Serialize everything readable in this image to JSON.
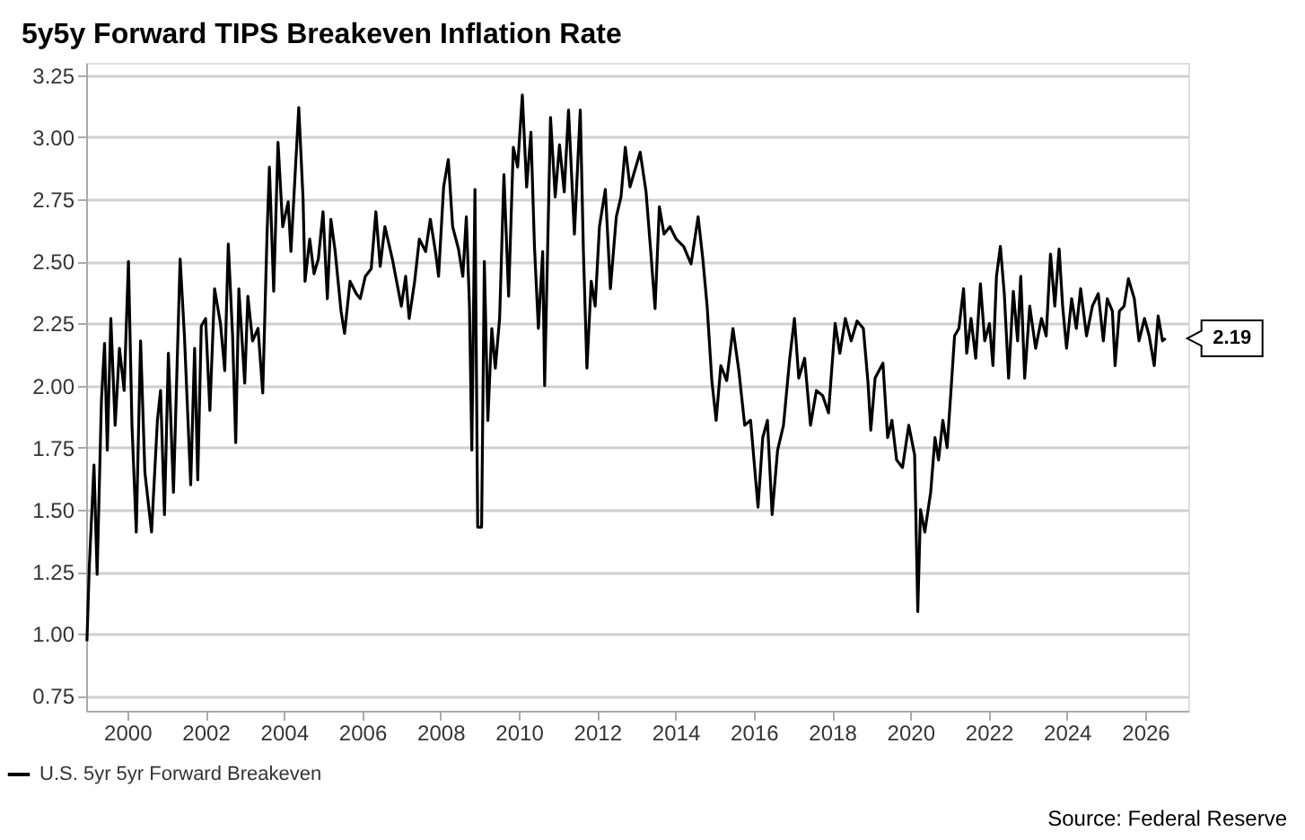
{
  "chart_data": {
    "type": "line",
    "title": "5y5y Forward TIPS Breakeven Inflation Rate",
    "x": [
      1998.97,
      1999.03,
      1999.15,
      1999.23,
      1999.34,
      1999.42,
      1999.49,
      1999.58,
      1999.69,
      1999.8,
      1999.92,
      2000.03,
      2000.12,
      2000.23,
      2000.34,
      2000.45,
      2000.62,
      2000.77,
      2000.85,
      2000.95,
      2001.05,
      2001.18,
      2001.35,
      2001.46,
      2001.62,
      2001.72,
      2001.8,
      2001.89,
      2002.0,
      2002.11,
      2002.23,
      2002.38,
      2002.49,
      2002.58,
      2002.69,
      2002.77,
      2002.85,
      2003.0,
      2003.08,
      2003.2,
      2003.34,
      2003.46,
      2003.57,
      2003.63,
      2003.74,
      2003.85,
      2003.97,
      2004.11,
      2004.18,
      2004.28,
      2004.38,
      2004.49,
      2004.54,
      2004.66,
      2004.77,
      2004.88,
      2005.0,
      2005.11,
      2005.2,
      2005.31,
      2005.46,
      2005.55,
      2005.69,
      2005.85,
      2005.95,
      2006.08,
      2006.23,
      2006.35,
      2006.46,
      2006.58,
      2006.77,
      2007.0,
      2007.11,
      2007.2,
      2007.34,
      2007.46,
      2007.62,
      2007.74,
      2007.88,
      2007.95,
      2008.08,
      2008.2,
      2008.31,
      2008.46,
      2008.57,
      2008.66,
      2008.74,
      2008.8,
      2008.88,
      2008.95,
      2009.05,
      2009.12,
      2009.21,
      2009.31,
      2009.4,
      2009.51,
      2009.62,
      2009.74,
      2009.86,
      2009.97,
      2010.09,
      2010.2,
      2010.31,
      2010.4,
      2010.5,
      2010.61,
      2010.66,
      2010.81,
      2010.93,
      2011.04,
      2011.16,
      2011.27,
      2011.42,
      2011.57,
      2011.65,
      2011.74,
      2011.85,
      2011.95,
      2012.06,
      2012.21,
      2012.34,
      2012.49,
      2012.61,
      2012.72,
      2012.84,
      2012.95,
      2013.1,
      2013.25,
      2013.37,
      2013.48,
      2013.59,
      2013.71,
      2013.86,
      2014.02,
      2014.21,
      2014.4,
      2014.58,
      2014.7,
      2014.81,
      2014.93,
      2015.04,
      2015.16,
      2015.31,
      2015.47,
      2015.62,
      2015.77,
      2015.92,
      2016.11,
      2016.23,
      2016.35,
      2016.47,
      2016.61,
      2016.76,
      2016.92,
      2017.04,
      2017.15,
      2017.3,
      2017.45,
      2017.6,
      2017.76,
      2017.91,
      2018.08,
      2018.2,
      2018.34,
      2018.49,
      2018.64,
      2018.8,
      2018.92,
      2018.99,
      2019.1,
      2019.3,
      2019.42,
      2019.53,
      2019.65,
      2019.8,
      2019.96,
      2020.11,
      2020.19,
      2020.26,
      2020.37,
      2020.52,
      2020.63,
      2020.72,
      2020.83,
      2020.94,
      2021.03,
      2021.13,
      2021.24,
      2021.36,
      2021.44,
      2021.55,
      2021.67,
      2021.79,
      2021.9,
      2022.02,
      2022.11,
      2022.2,
      2022.3,
      2022.4,
      2022.51,
      2022.63,
      2022.74,
      2022.82,
      2022.92,
      2023.05,
      2023.2,
      2023.35,
      2023.47,
      2023.58,
      2023.69,
      2023.8,
      2023.89,
      2023.99,
      2024.12,
      2024.24,
      2024.35,
      2024.5,
      2024.65,
      2024.8,
      2024.93,
      2025.03,
      2025.16,
      2025.23,
      2025.34,
      2025.46,
      2025.57,
      2025.72,
      2025.84,
      2025.98,
      2026.1,
      2026.23,
      2026.33,
      2026.44,
      2026.52
    ],
    "series": [
      {
        "name": "U.S. 5yr 5yr Forward Breakeven",
        "color": "#000000",
        "values": [
          0.97,
          1.27,
          1.68,
          1.24,
          1.94,
          2.17,
          1.74,
          2.27,
          1.84,
          2.15,
          1.98,
          2.5,
          1.84,
          1.41,
          2.18,
          1.65,
          1.41,
          1.86,
          1.98,
          1.48,
          2.13,
          1.57,
          2.51,
          2.2,
          1.6,
          2.15,
          1.62,
          2.24,
          2.27,
          1.9,
          2.39,
          2.25,
          2.06,
          2.57,
          2.2,
          1.77,
          2.39,
          2.01,
          2.36,
          2.18,
          2.23,
          1.97,
          2.61,
          2.88,
          2.38,
          2.98,
          2.64,
          2.74,
          2.54,
          2.83,
          3.12,
          2.75,
          2.42,
          2.59,
          2.45,
          2.51,
          2.7,
          2.35,
          2.67,
          2.54,
          2.3,
          2.21,
          2.42,
          2.37,
          2.35,
          2.44,
          2.47,
          2.7,
          2.48,
          2.64,
          2.51,
          2.32,
          2.44,
          2.27,
          2.42,
          2.59,
          2.54,
          2.67,
          2.53,
          2.44,
          2.8,
          2.91,
          2.64,
          2.55,
          2.44,
          2.68,
          2.32,
          1.74,
          2.79,
          1.43,
          1.43,
          2.5,
          1.86,
          2.23,
          2.07,
          2.27,
          2.85,
          2.36,
          2.96,
          2.88,
          3.17,
          2.8,
          3.02,
          2.56,
          2.23,
          2.54,
          2.0,
          3.08,
          2.76,
          2.97,
          2.78,
          3.11,
          2.61,
          3.11,
          2.54,
          2.07,
          2.42,
          2.32,
          2.64,
          2.79,
          2.39,
          2.68,
          2.76,
          2.96,
          2.8,
          2.86,
          2.94,
          2.78,
          2.54,
          2.31,
          2.72,
          2.61,
          2.64,
          2.59,
          2.56,
          2.49,
          2.68,
          2.51,
          2.32,
          2.02,
          1.86,
          2.08,
          2.02,
          2.23,
          2.06,
          1.84,
          1.86,
          1.51,
          1.79,
          1.86,
          1.48,
          1.74,
          1.84,
          2.11,
          2.27,
          2.03,
          2.11,
          1.84,
          1.98,
          1.96,
          1.89,
          2.25,
          2.13,
          2.27,
          2.18,
          2.26,
          2.23,
          2.01,
          1.82,
          2.03,
          2.09,
          1.79,
          1.86,
          1.7,
          1.67,
          1.84,
          1.72,
          1.09,
          1.5,
          1.41,
          1.57,
          1.79,
          1.7,
          1.86,
          1.75,
          1.96,
          2.2,
          2.23,
          2.39,
          2.13,
          2.27,
          2.11,
          2.41,
          2.18,
          2.25,
          2.08,
          2.44,
          2.56,
          2.37,
          2.03,
          2.38,
          2.18,
          2.44,
          2.03,
          2.32,
          2.15,
          2.27,
          2.2,
          2.53,
          2.32,
          2.55,
          2.32,
          2.15,
          2.35,
          2.23,
          2.39,
          2.2,
          2.32,
          2.37,
          2.18,
          2.35,
          2.3,
          2.08,
          2.3,
          2.32,
          2.43,
          2.35,
          2.18,
          2.27,
          2.2,
          2.08,
          2.28,
          2.18,
          2.19
        ]
      }
    ],
    "xlim": [
      1998.95,
      2027.1
    ],
    "ylim": [
      0.69,
      3.3
    ],
    "xticks": [
      2000,
      2002,
      2004,
      2006,
      2008,
      2010,
      2012,
      2014,
      2016,
      2018,
      2020,
      2022,
      2024,
      2026
    ],
    "yticks": [
      {
        "value": 0.75,
        "label": "0.75"
      },
      {
        "value": 1,
        "label": "1.00"
      },
      {
        "value": 1.25,
        "label": "1.25"
      },
      {
        "value": 1.5,
        "label": "1.50"
      },
      {
        "value": 1.75,
        "label": "1.75"
      },
      {
        "value": 2,
        "label": "2.00"
      },
      {
        "value": 2.25,
        "label": "2.25"
      },
      {
        "value": 2.5,
        "label": "2.50"
      },
      {
        "value": 2.75,
        "label": "2.75"
      },
      {
        "value": 3,
        "label": "3.00"
      },
      {
        "value": 3.25,
        "label": "3.25"
      }
    ],
    "grid": "y",
    "legend": "bottom left",
    "line_style": "solid",
    "marker": "none",
    "annotations": [
      {
        "text": "2.19",
        "x": 2026.52,
        "y": 2.19
      },
      "Source: Federal Reserve"
    ]
  }
}
